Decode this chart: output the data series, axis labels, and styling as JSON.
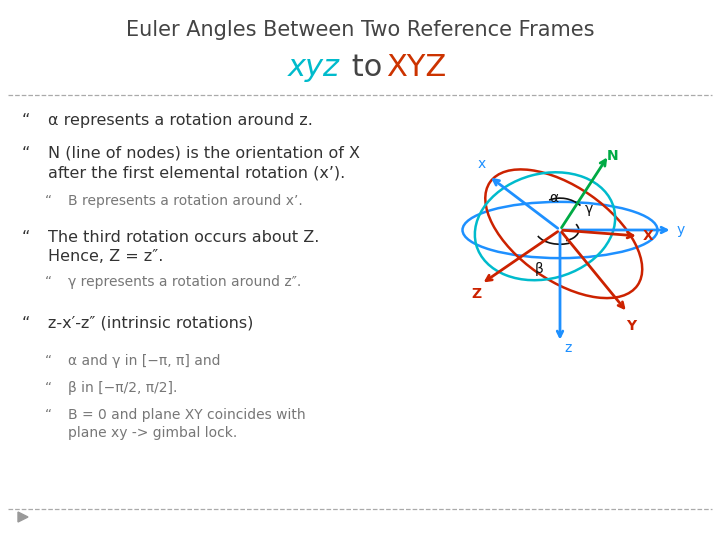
{
  "title_line1": "Euler Angles Between Two Reference Frames",
  "title_line1_color": "#444444",
  "title_line1_fontsize": 15,
  "title_xyz": "xyz",
  "title_xyz_color": "#00BBCC",
  "title_to": " to ",
  "title_to_color": "#444444",
  "title_XYZ": "XYZ",
  "title_XYZ_color": "#CC3300",
  "title_line2_fontsize": 22,
  "bg_color": "#FFFFFF",
  "text_color": "#333333",
  "sub_text_color": "#777777",
  "bullet_items": [
    {
      "level": 0,
      "text": "α represents a rotation around z.",
      "bold": false,
      "fontsize": 11.5
    },
    {
      "level": 0,
      "text": "N (line of nodes) is the orientation of X\nafter the first elemental rotation (x’).",
      "bold": false,
      "fontsize": 11.5
    },
    {
      "level": 1,
      "text": "B represents a rotation around x’.",
      "bold": false,
      "fontsize": 10
    },
    {
      "level": 0,
      "text": "The third rotation occurs about Z.\nHence, Z = z″.",
      "bold": false,
      "fontsize": 11.5
    },
    {
      "level": 1,
      "text": "γ represents a rotation around z″.",
      "bold": false,
      "fontsize": 10
    },
    {
      "level": 0,
      "text": "z-x′-z″ (intrinsic rotations)",
      "bold": false,
      "fontsize": 11.5
    },
    {
      "level": 1,
      "text": "α and γ in [−π, π] and",
      "bold": false,
      "fontsize": 10
    },
    {
      "level": 1,
      "text": "β in [−π/2, π/2].",
      "bold": false,
      "fontsize": 10
    },
    {
      "level": 1,
      "text": "B = 0 and plane XY coincides with\nplane xy -> gimbal lock.",
      "bold": false,
      "fontsize": 10
    }
  ],
  "blue_color": "#1E90FF",
  "red_color": "#CC2200",
  "green_color": "#00AA44",
  "cyan_color": "#00BBCC",
  "black_color": "#111111"
}
